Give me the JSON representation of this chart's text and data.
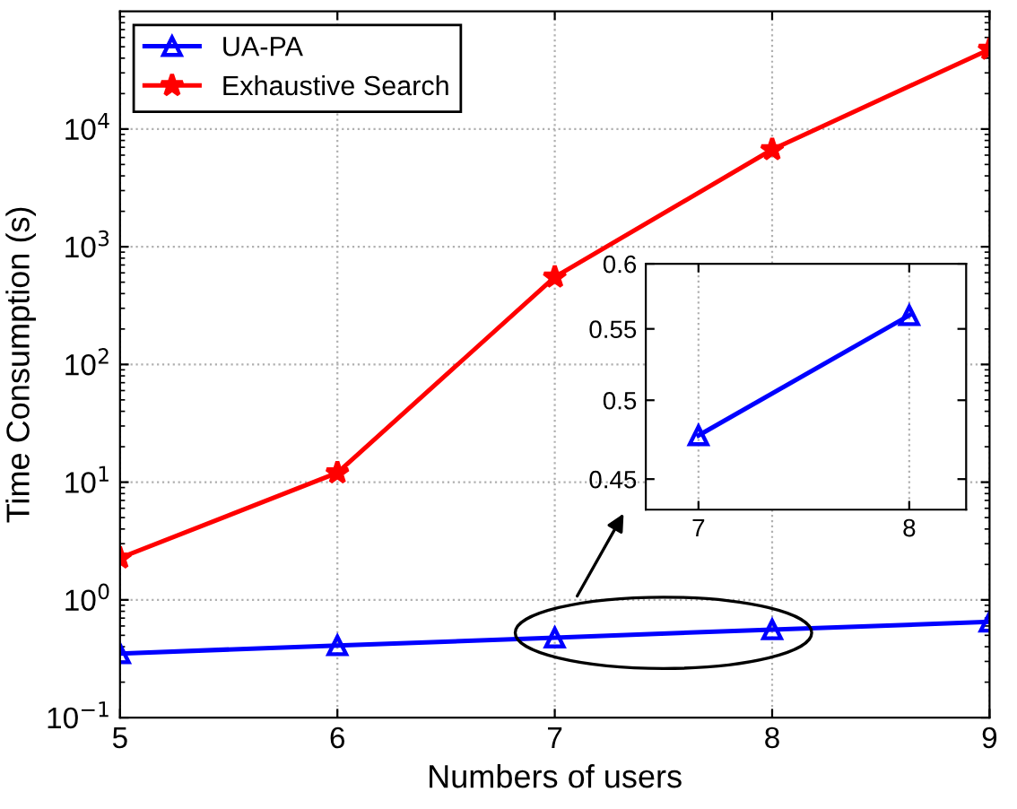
{
  "chart_data": [
    {
      "type": "line",
      "xlabel": "Numbers of users",
      "ylabel": "Time Consumption (s)",
      "x": [
        5,
        6,
        7,
        8,
        9
      ],
      "series": [
        {
          "name": "UA-PA",
          "color": "#0000ff",
          "marker": "triangle",
          "values": [
            0.35,
            0.41,
            0.477,
            0.56,
            0.65
          ]
        },
        {
          "name": "Exhaustive Search",
          "color": "#ff0000",
          "marker": "star",
          "values": [
            2.27,
            12,
            553,
            6690,
            47600
          ]
        }
      ],
      "log": "y",
      "xlim": [
        5,
        9
      ],
      "xticks": [
        5,
        6,
        7,
        8,
        9
      ],
      "ylim": [
        0.1,
        100000
      ],
      "yticks": [
        {
          "value": 0.1,
          "label": "10$^{−1}$"
        },
        {
          "value": 1,
          "label": "10$^{0}$"
        },
        {
          "value": 10,
          "label": "10$^{1}$"
        },
        {
          "value": 100,
          "label": "10$^{2}$"
        },
        {
          "value": 1000,
          "label": "10$^{3}$"
        },
        {
          "value": 10000,
          "label": "10$^{4}$"
        }
      ],
      "grid": true,
      "legend": "top left",
      "line_style": "solid"
    },
    {
      "type": "line",
      "x": [
        7,
        8
      ],
      "series": [
        {
          "color": "#0000ff",
          "marker": "triangle",
          "values": [
            0.477,
            0.56
          ]
        }
      ],
      "log": "y",
      "xlim": [
        6.75,
        8.27
      ],
      "xticks": [
        7,
        8
      ],
      "ylim": [
        0.432,
        0.6
      ],
      "yticks": [
        0.45,
        0.5,
        0.55,
        0.6
      ],
      "grid": "x",
      "line_style": "solid"
    }
  ]
}
